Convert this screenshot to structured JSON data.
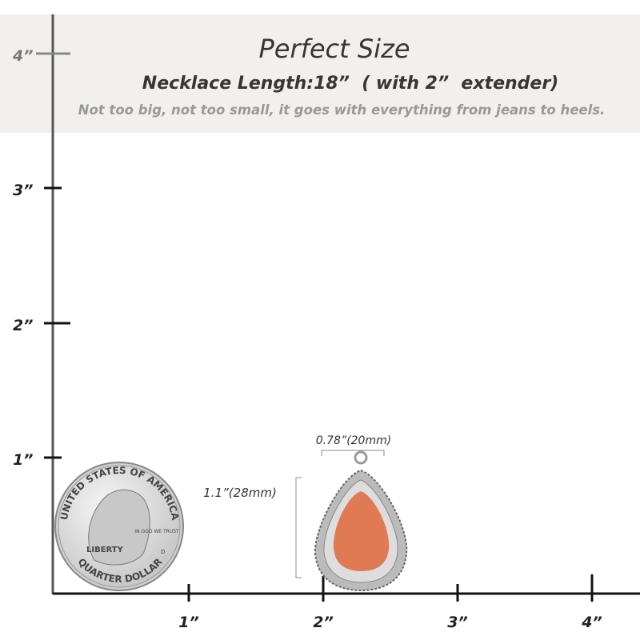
{
  "header": {
    "title": "Perfect Size",
    "subtitle": "Necklace Length:18”  ( with 2”  extender)",
    "note": "Not too big, not too small, it goes with everything from jeans to heels."
  },
  "ruler": {
    "vertical": [
      "4”",
      "3”",
      "2”",
      "1”"
    ],
    "horizontal": [
      "1”",
      "2”",
      "3”",
      "4”"
    ]
  },
  "pendant": {
    "width": "0.78”(20mm)",
    "height": "1.1”(28mm)"
  },
  "coin": {
    "rim_top": "UNITED STATES OF AMERICA",
    "motto": "IN GOD WE TRUST",
    "liberty": "LIBERTY",
    "rim_bottom": "QUARTER DOLLAR",
    "mint": "D"
  }
}
